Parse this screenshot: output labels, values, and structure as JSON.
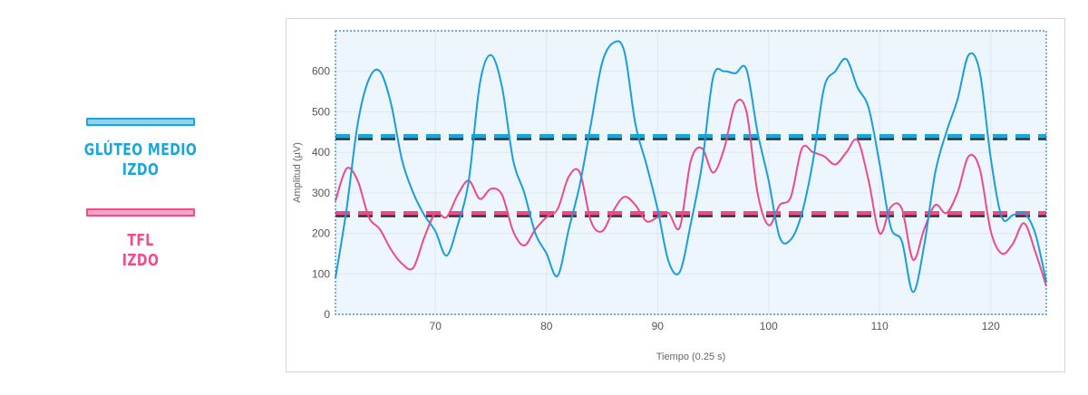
{
  "legend": {
    "items": [
      {
        "line1": "GLÚTEO MEDIO",
        "line2": "IZDO",
        "color": "#1aa6dd",
        "fill": "#8fd3f0"
      },
      {
        "line1": "TFL",
        "line2": "IZDO",
        "color": "#ee4d8c",
        "fill": "#f7a3c4"
      }
    ]
  },
  "chart_data": {
    "type": "line",
    "xlabel": "Tiempo (0.25 s)",
    "ylabel": "Amplitud (µV)",
    "xlim": [
      61,
      125
    ],
    "ylim": [
      0,
      700
    ],
    "x_ticks": [
      70,
      80,
      90,
      100,
      110,
      120
    ],
    "y_ticks": [
      0,
      100,
      200,
      300,
      400,
      500,
      600
    ],
    "grid": true,
    "series": [
      {
        "color": "#1a9ddc",
        "points": [
          [
            61,
            90
          ],
          [
            62,
            260
          ],
          [
            63,
            470
          ],
          [
            64,
            580
          ],
          [
            65,
            600
          ],
          [
            66,
            520
          ],
          [
            67,
            380
          ],
          [
            68,
            300
          ],
          [
            69,
            245
          ],
          [
            70,
            205
          ],
          [
            71,
            145
          ],
          [
            72,
            220
          ],
          [
            73,
            330
          ],
          [
            74,
            570
          ],
          [
            75,
            640
          ],
          [
            76,
            560
          ],
          [
            77,
            380
          ],
          [
            78,
            300
          ],
          [
            79,
            200
          ],
          [
            80,
            150
          ],
          [
            81,
            95
          ],
          [
            82,
            210
          ],
          [
            83,
            320
          ],
          [
            84,
            470
          ],
          [
            85,
            620
          ],
          [
            86,
            670
          ],
          [
            87,
            650
          ],
          [
            88,
            470
          ],
          [
            89,
            370
          ],
          [
            90,
            260
          ],
          [
            91,
            130
          ],
          [
            92,
            105
          ],
          [
            93,
            225
          ],
          [
            94,
            370
          ],
          [
            95,
            585
          ],
          [
            96,
            600
          ],
          [
            97,
            595
          ],
          [
            98,
            605
          ],
          [
            99,
            450
          ],
          [
            100,
            330
          ],
          [
            101,
            190
          ],
          [
            102,
            185
          ],
          [
            103,
            250
          ],
          [
            104,
            380
          ],
          [
            105,
            560
          ],
          [
            106,
            600
          ],
          [
            107,
            630
          ],
          [
            108,
            560
          ],
          [
            109,
            510
          ],
          [
            110,
            370
          ],
          [
            111,
            215
          ],
          [
            112,
            180
          ],
          [
            113,
            55
          ],
          [
            114,
            170
          ],
          [
            115,
            350
          ],
          [
            116,
            450
          ],
          [
            117,
            530
          ],
          [
            118,
            640
          ],
          [
            119,
            600
          ],
          [
            120,
            385
          ],
          [
            121,
            240
          ],
          [
            122,
            245
          ],
          [
            123,
            250
          ],
          [
            124,
            200
          ],
          [
            125,
            80
          ]
        ]
      },
      {
        "color": "#ec4a8a",
        "points": [
          [
            61,
            280
          ],
          [
            62,
            360
          ],
          [
            63,
            330
          ],
          [
            64,
            240
          ],
          [
            65,
            210
          ],
          [
            66,
            160
          ],
          [
            67,
            125
          ],
          [
            68,
            115
          ],
          [
            69,
            190
          ],
          [
            70,
            250
          ],
          [
            71,
            240
          ],
          [
            72,
            295
          ],
          [
            73,
            330
          ],
          [
            74,
            285
          ],
          [
            75,
            310
          ],
          [
            76,
            295
          ],
          [
            77,
            205
          ],
          [
            78,
            170
          ],
          [
            79,
            210
          ],
          [
            80,
            240
          ],
          [
            81,
            260
          ],
          [
            82,
            340
          ],
          [
            83,
            350
          ],
          [
            84,
            230
          ],
          [
            85,
            205
          ],
          [
            86,
            255
          ],
          [
            87,
            290
          ],
          [
            88,
            270
          ],
          [
            89,
            230
          ],
          [
            90,
            240
          ],
          [
            91,
            250
          ],
          [
            92,
            215
          ],
          [
            93,
            380
          ],
          [
            94,
            410
          ],
          [
            95,
            350
          ],
          [
            96,
            410
          ],
          [
            97,
            520
          ],
          [
            98,
            500
          ],
          [
            99,
            300
          ],
          [
            100,
            220
          ],
          [
            101,
            270
          ],
          [
            102,
            290
          ],
          [
            103,
            410
          ],
          [
            104,
            400
          ],
          [
            105,
            390
          ],
          [
            106,
            370
          ],
          [
            107,
            400
          ],
          [
            108,
            430
          ],
          [
            109,
            330
          ],
          [
            110,
            200
          ],
          [
            111,
            265
          ],
          [
            112,
            260
          ],
          [
            113,
            135
          ],
          [
            114,
            210
          ],
          [
            115,
            270
          ],
          [
            116,
            250
          ],
          [
            117,
            300
          ],
          [
            118,
            390
          ],
          [
            119,
            360
          ],
          [
            120,
            205
          ],
          [
            121,
            150
          ],
          [
            122,
            175
          ],
          [
            123,
            225
          ],
          [
            124,
            155
          ],
          [
            125,
            70
          ]
        ]
      }
    ],
    "thresholds": [
      {
        "y": 440,
        "color": "#1aa6dd"
      },
      {
        "y": 250,
        "color": "#ec4a8a"
      }
    ]
  }
}
